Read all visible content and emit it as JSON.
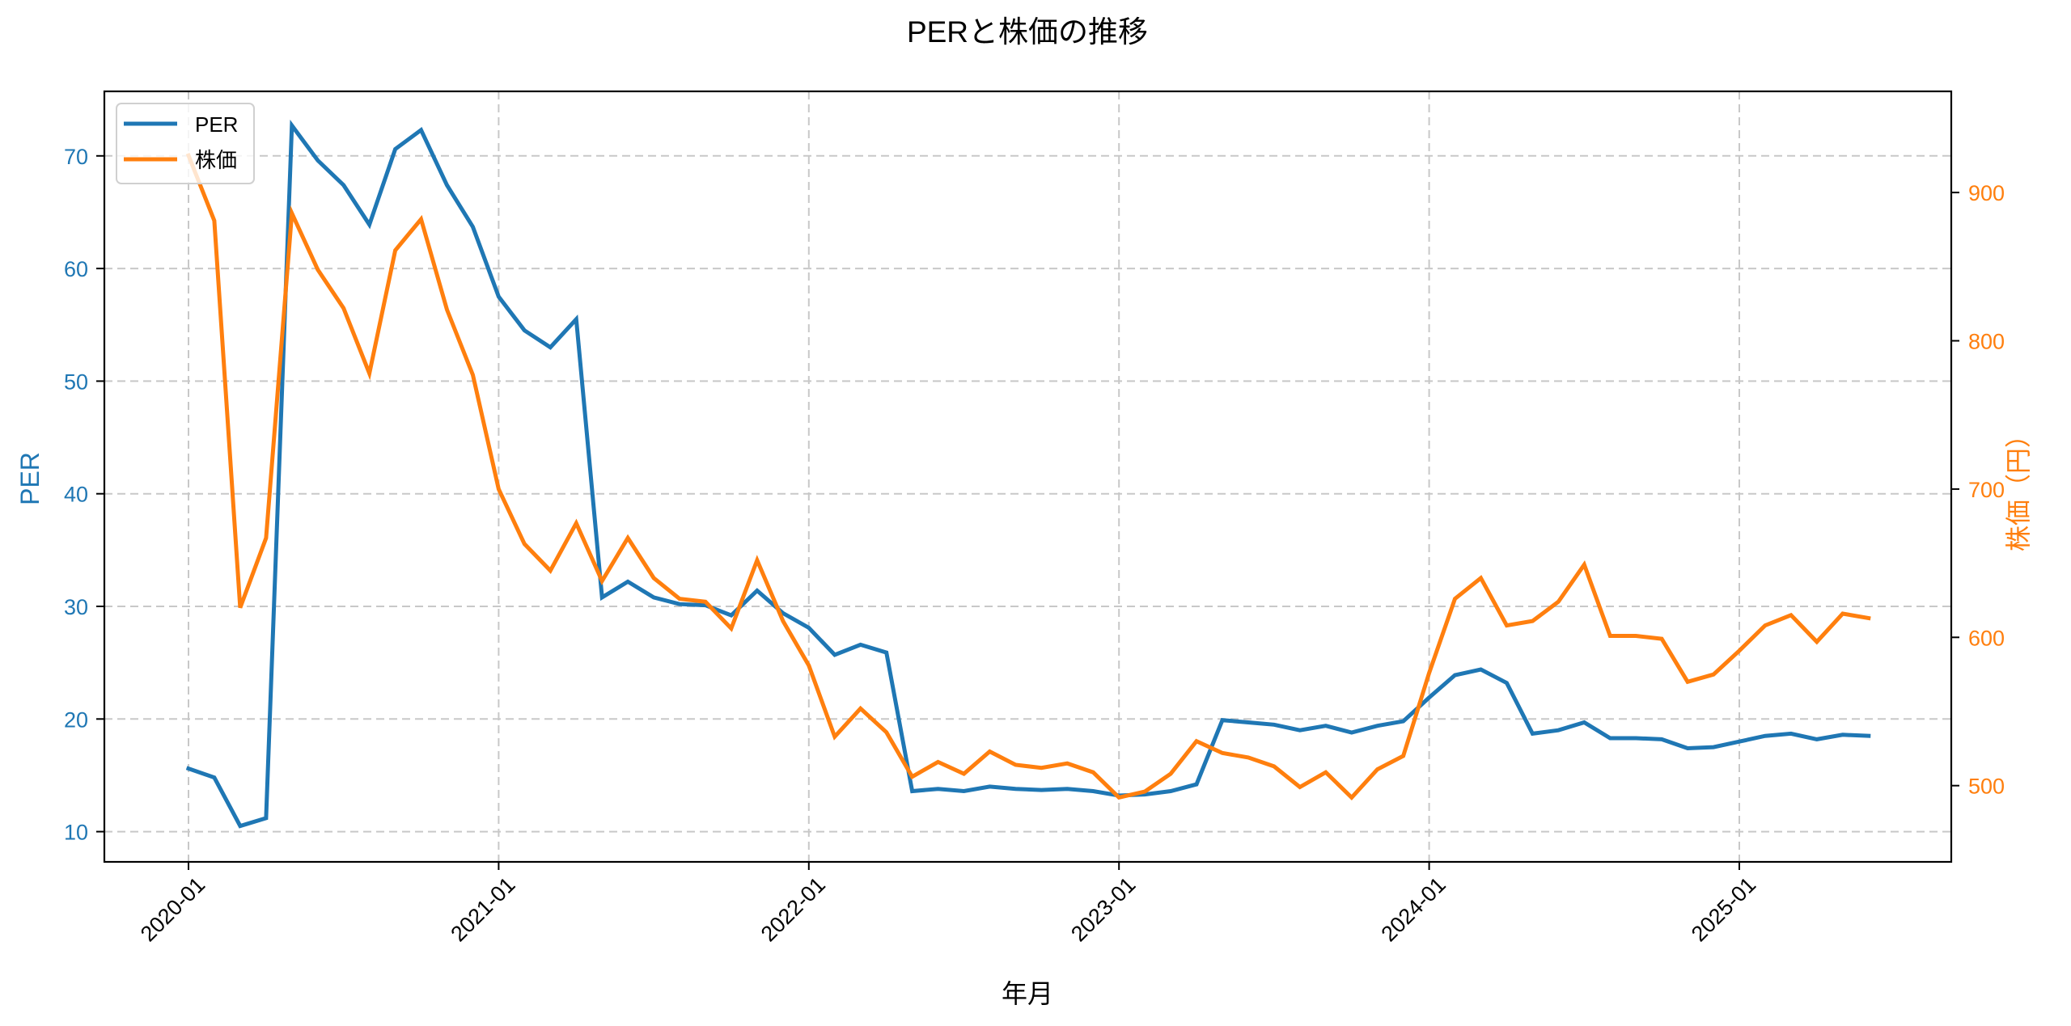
{
  "chart_data": {
    "type": "line",
    "title": "PERと株価の推移",
    "xlabel": "年月",
    "ylabel": "PER",
    "ylabel_right": "株価（円）",
    "x_tick_labels": [
      "2020-01",
      "2021-01",
      "2022-01",
      "2023-01",
      "2024-01",
      "2025-01"
    ],
    "x_tick_month_index": [
      0,
      12,
      24,
      36,
      48,
      60
    ],
    "y_left_ticks": [
      10,
      20,
      30,
      40,
      50,
      60,
      70
    ],
    "y_right_ticks": [
      500,
      600,
      700,
      800,
      900
    ],
    "ylim_left": [
      7.3,
      75.8
    ],
    "ylim_right": [
      448,
      968
    ],
    "grid": true,
    "grid_style": "dashed",
    "legend_position": "upper left",
    "x": [
      "2020-01",
      "2020-02",
      "2020-03",
      "2020-04",
      "2020-05",
      "2020-06",
      "2020-07",
      "2020-08",
      "2020-09",
      "2020-10",
      "2020-11",
      "2020-12",
      "2021-01",
      "2021-02",
      "2021-03",
      "2021-04",
      "2021-05",
      "2021-06",
      "2021-07",
      "2021-08",
      "2021-09",
      "2021-10",
      "2021-11",
      "2021-12",
      "2022-01",
      "2022-02",
      "2022-03",
      "2022-04",
      "2022-05",
      "2022-06",
      "2022-07",
      "2022-08",
      "2022-09",
      "2022-10",
      "2022-11",
      "2022-12",
      "2023-01",
      "2023-02",
      "2023-03",
      "2023-04",
      "2023-05",
      "2023-06",
      "2023-07",
      "2023-08",
      "2023-09",
      "2023-10",
      "2023-11",
      "2023-12",
      "2024-01",
      "2024-02",
      "2024-03",
      "2024-04",
      "2024-05",
      "2024-06",
      "2024-07",
      "2024-08",
      "2024-09",
      "2024-10",
      "2024-11",
      "2024-12",
      "2025-01",
      "2025-02",
      "2025-03",
      "2025-04",
      "2025-05",
      "2025-06"
    ],
    "series": [
      {
        "name": "PER",
        "axis": "left",
        "color": "#1f77b4",
        "values": [
          15.6,
          14.8,
          10.5,
          11.2,
          72.7,
          69.6,
          67.4,
          63.9,
          70.6,
          72.3,
          67.4,
          63.7,
          57.5,
          54.5,
          53.0,
          55.5,
          30.8,
          32.2,
          30.8,
          30.2,
          30.1,
          29.2,
          31.4,
          29.4,
          28.1,
          25.7,
          26.6,
          25.9,
          13.6,
          13.8,
          13.6,
          14.0,
          13.8,
          13.7,
          13.8,
          13.6,
          13.2,
          13.3,
          13.6,
          14.2,
          19.9,
          19.7,
          19.5,
          19.0,
          19.4,
          18.8,
          19.4,
          19.8,
          21.9,
          23.9,
          24.4,
          23.2,
          18.7,
          19.0,
          19.7,
          18.3,
          18.3,
          18.2,
          17.4,
          17.5,
          18.0,
          18.5,
          18.7,
          18.2,
          18.6,
          18.5
        ]
      },
      {
        "name": "株価",
        "axis": "right",
        "color": "#ff7f0e",
        "values": [
          925,
          881,
          620,
          667,
          886,
          848,
          822,
          778,
          861,
          882,
          821,
          777,
          700,
          663,
          645,
          677,
          638,
          667,
          640,
          626,
          624,
          606,
          652,
          611,
          581,
          533,
          552,
          536,
          506,
          516,
          508,
          523,
          514,
          512,
          515,
          509,
          492,
          496,
          508,
          530,
          522,
          519,
          513,
          499,
          509,
          492,
          511,
          520,
          576,
          626,
          640,
          608,
          611,
          624,
          649,
          601,
          601,
          599,
          570,
          575,
          591,
          608,
          615,
          597,
          616,
          613
        ]
      }
    ]
  },
  "legend": {
    "items": [
      {
        "label": "PER",
        "color": "#1f77b4"
      },
      {
        "label": "株価",
        "color": "#ff7f0e"
      }
    ]
  },
  "colors": {
    "left_axis": "#1f77b4",
    "right_axis": "#ff7f0e",
    "grid": "#c8c8c8",
    "frame": "#000000"
  }
}
